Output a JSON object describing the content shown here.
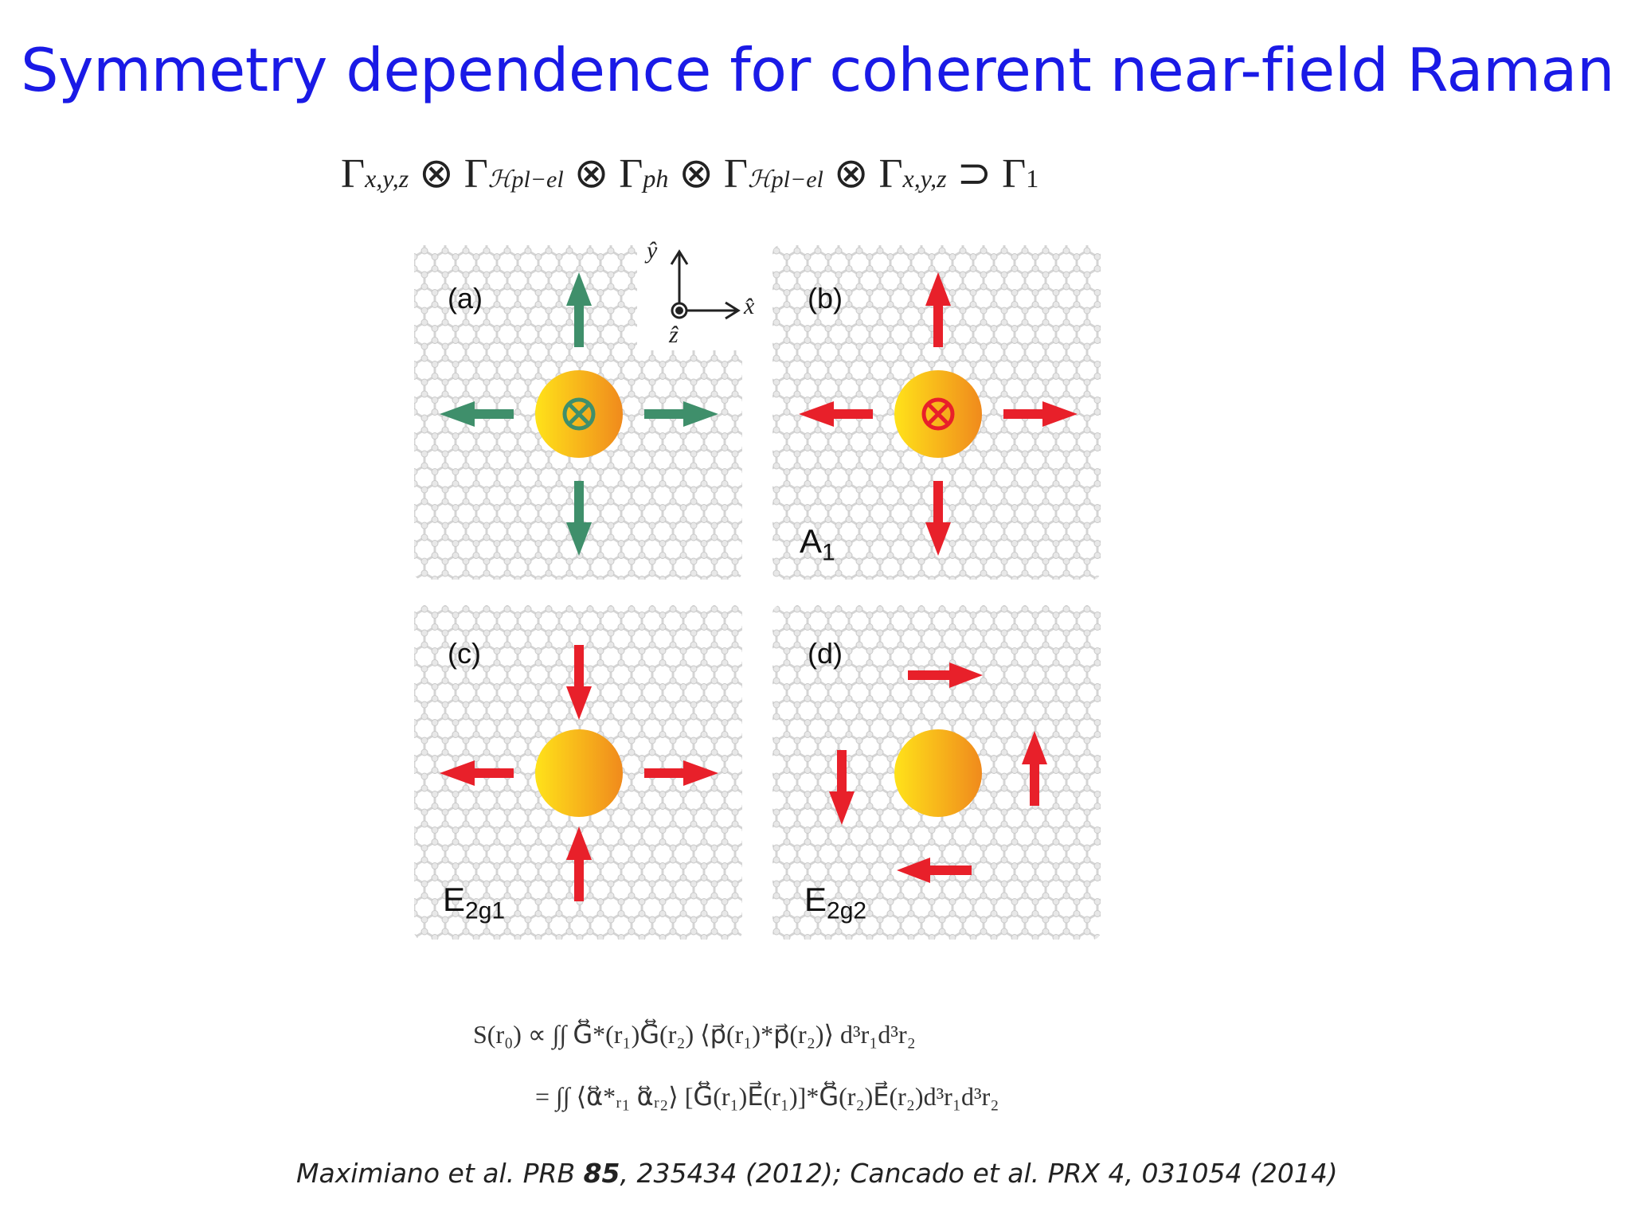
{
  "title": "Symmetry dependence for coherent near-field Raman",
  "selection_rule": {
    "gamma_xyz": "Γ",
    "sub_xyz": "x,y,z",
    "otimes": "⊗",
    "h_pl_el": "ℋpl−el",
    "sub_ph": "ph",
    "supset": "⊃",
    "gamma_1_sub": "1"
  },
  "axes": {
    "y": "ŷ",
    "x": "x̂",
    "z": "ẑ"
  },
  "panels": [
    {
      "id": "a",
      "label": "(a)",
      "mode": "",
      "mode_sub": "",
      "arrow_color": "#3f8f6b",
      "center_symbol": "⊗"
    },
    {
      "id": "b",
      "label": "(b)",
      "mode": "A",
      "mode_sub": "1",
      "arrow_color": "#e8202a",
      "center_symbol": "⊗"
    },
    {
      "id": "c",
      "label": "(c)",
      "mode": "E",
      "mode_sub": "2g1",
      "arrow_color": "#e8202a",
      "center_symbol": ""
    },
    {
      "id": "d",
      "label": "(d)",
      "mode": "E",
      "mode_sub": "2g2",
      "arrow_color": "#e8202a",
      "center_symbol": ""
    }
  ],
  "equation": {
    "line1": "S(r₀) ∝ ∫∫ G⃡*(r₁)G⃡(r₂) ⟨p⃗(r₁)*p⃗(r₂)⟩ d³r₁d³r₂",
    "line2": "= ∫∫ ⟨α⃡*ᵣ₁ α⃡ᵣ₂⟩ [G⃡(r₁)E⃗(r₁)]*G⃡(r₂)E⃗(r₂)d³r₁d³r₂"
  },
  "citation": {
    "part1": "Maximiano et al. PRB ",
    "volume": "85",
    "part2": ", 235434 (2012); Cancado et al. PRX 4, 031054 (2014)"
  },
  "colors": {
    "title": "#1a1ae6",
    "green_arrow": "#3f8f6b",
    "red_arrow": "#e8202a",
    "particle_left": "#ffe21a",
    "particle_right": "#f08a1c"
  }
}
